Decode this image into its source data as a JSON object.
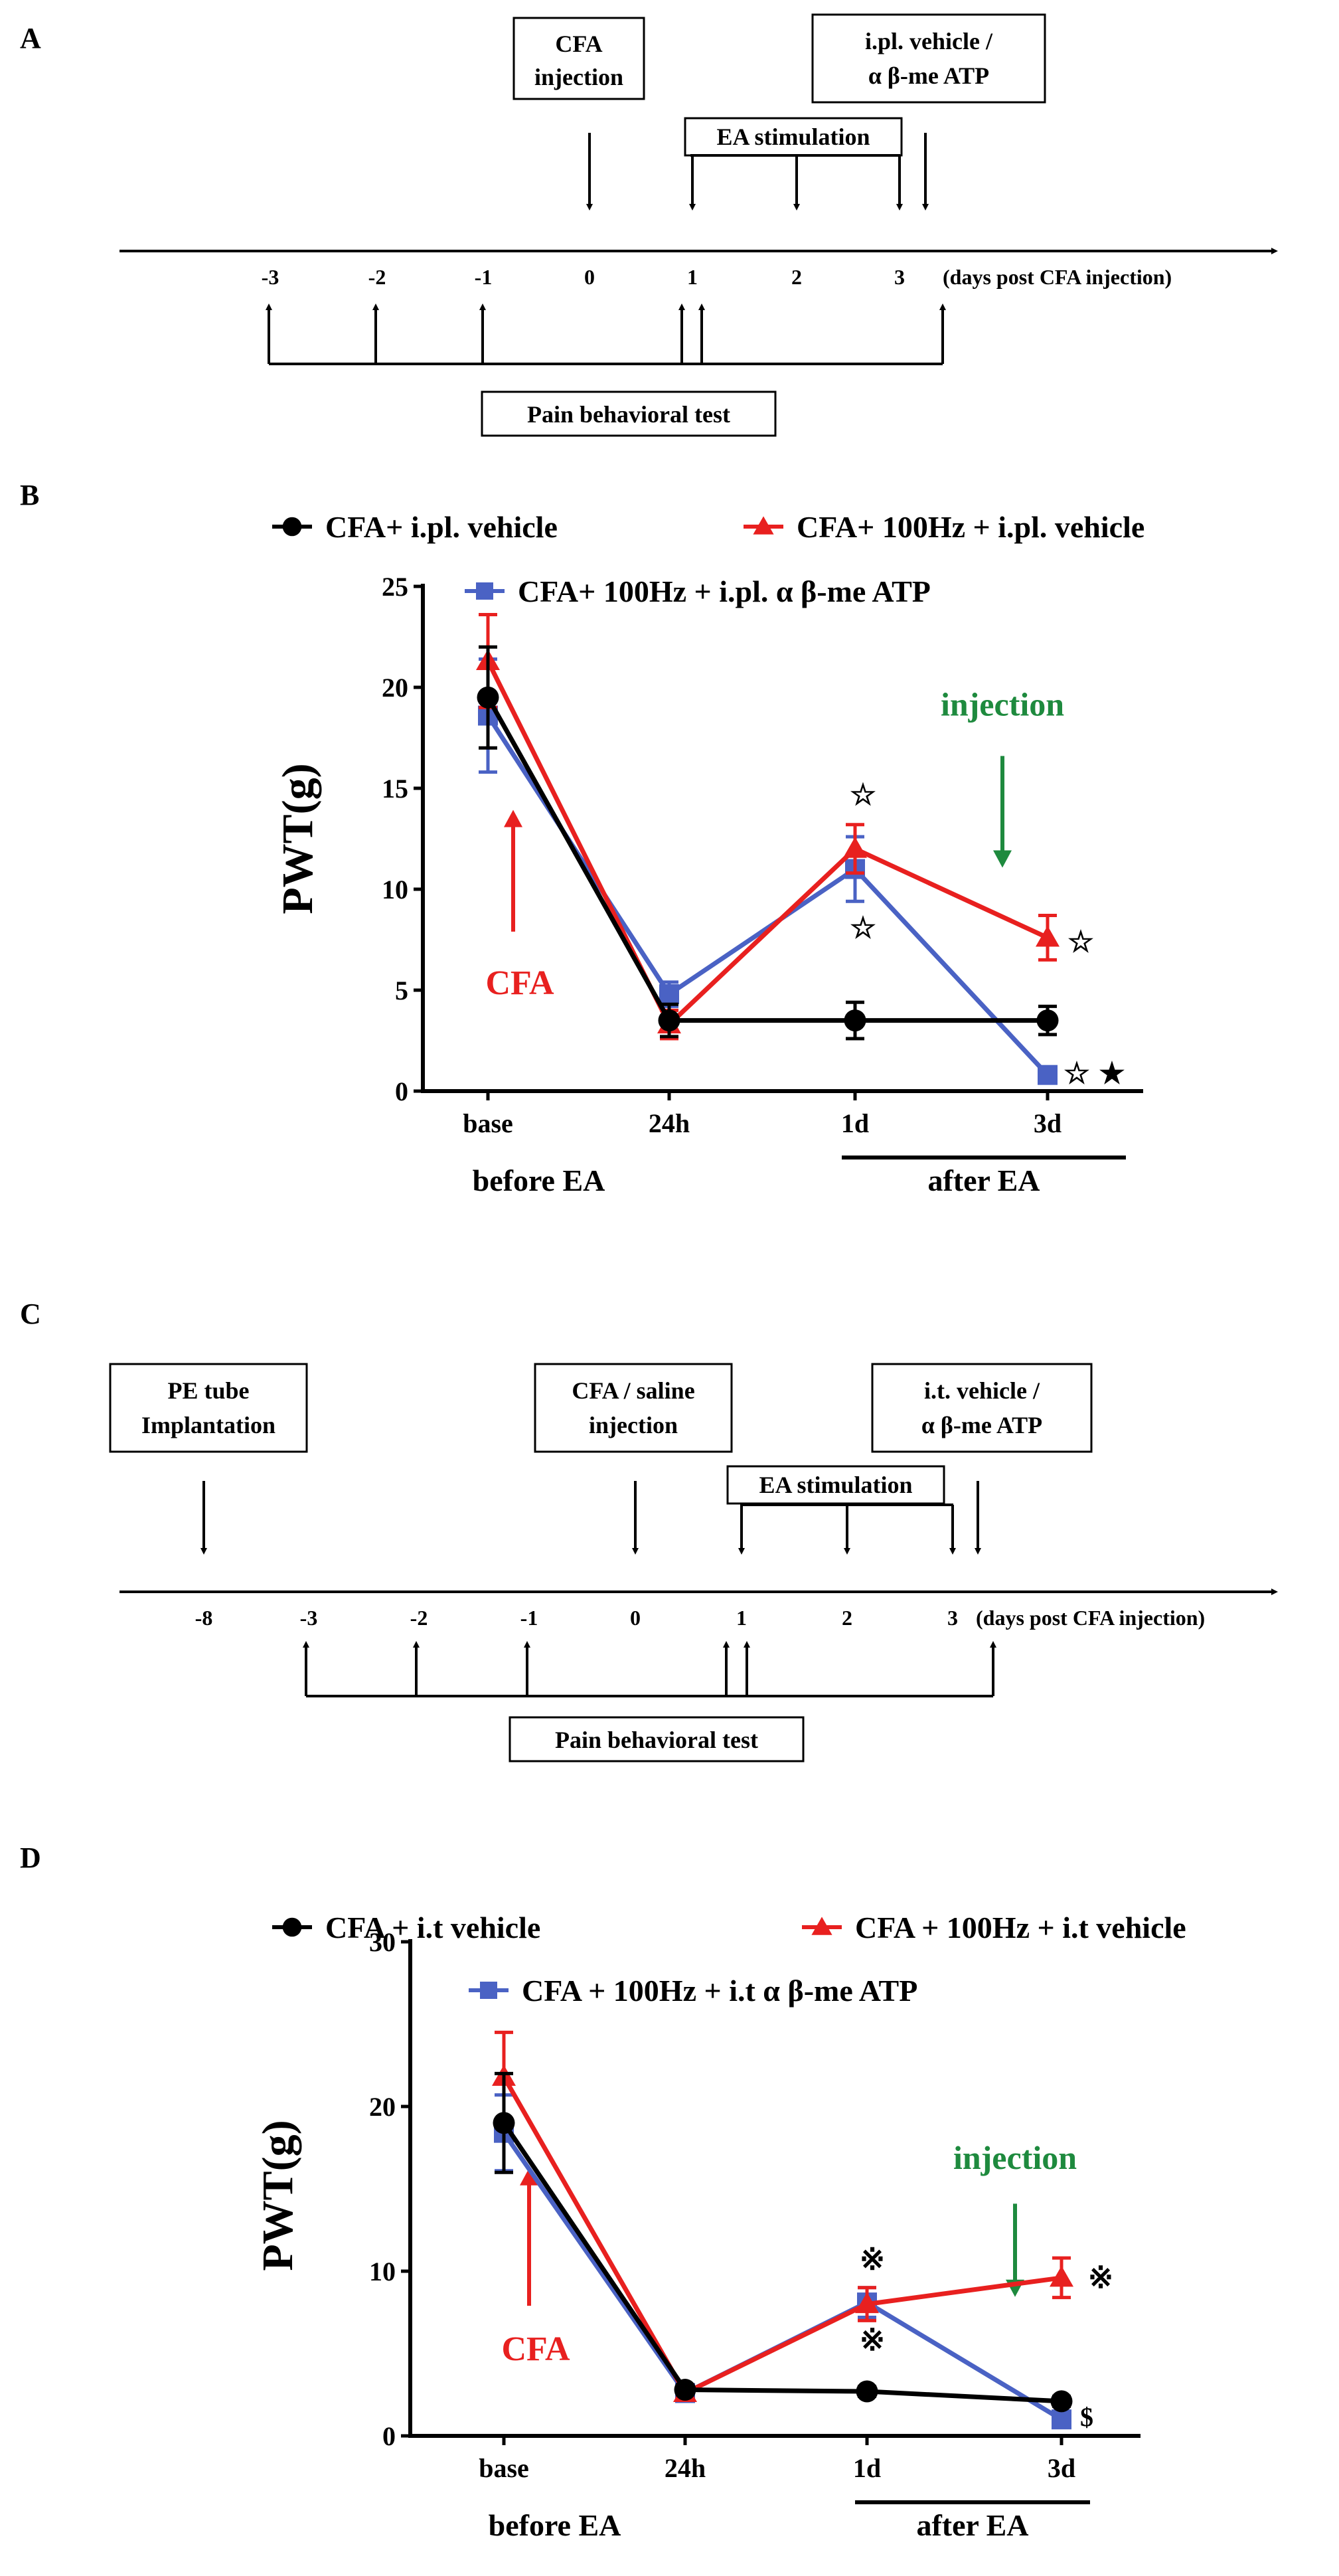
{
  "panels": {
    "A": "A",
    "B": "B",
    "C": "C",
    "D": "D"
  },
  "timeline_A": {
    "ticks": [
      "-3",
      "-2",
      "-1",
      "0",
      "1",
      "2",
      "3"
    ],
    "axis_label": "(days post CFA injection)",
    "box_cfa_line1": "CFA",
    "box_cfa_line2": "injection",
    "box_drug_line1": "i.pl. vehicle /",
    "box_drug_line2": "α β-me ATP",
    "box_ea": "EA stimulation",
    "box_pain": "Pain behavioral test"
  },
  "timeline_C": {
    "ticks": [
      "-8",
      "-3",
      "-2",
      "-1",
      "0",
      "1",
      "2",
      "3"
    ],
    "axis_label": "(days post CFA injection)",
    "box_pe_line1": "PE tube",
    "box_pe_line2": "Implantation",
    "box_cfa_line1": "CFA / saline",
    "box_cfa_line2": "injection",
    "box_drug_line1": "i.t. vehicle /",
    "box_drug_line2": "α β-me ATP",
    "box_ea": "EA stimulation",
    "box_pain": "Pain behavioral test"
  },
  "colors": {
    "black_series": "#000000",
    "red_series": "#e8201f",
    "blue_series": "#4a62c4",
    "injection_green": "#1e8a3e",
    "cfa_red": "#e8201f"
  },
  "chart_data": [
    {
      "panel": "B",
      "type": "line",
      "ylabel": "PWT(g)",
      "ylim": [
        0,
        25
      ],
      "yticks": [
        "0",
        "5",
        "10",
        "15",
        "20",
        "25"
      ],
      "categories": [
        "base",
        "24h",
        "1d",
        "3d"
      ],
      "group_labels": [
        "before EA",
        "after EA"
      ],
      "series": [
        {
          "name": "CFA+ i.pl. vehicle",
          "marker": "circle",
          "color": "#000000",
          "values": [
            19.5,
            3.5,
            3.5,
            3.5
          ],
          "errors": [
            2.5,
            0.8,
            0.9,
            0.7
          ]
        },
        {
          "name": "CFA+ 100Hz + i.pl. vehicle",
          "marker": "triangle",
          "color": "#e8201f",
          "values": [
            21.3,
            3.3,
            12.0,
            7.6
          ],
          "errors": [
            2.3,
            0.7,
            1.2,
            1.1
          ]
        },
        {
          "name": "CFA+ 100Hz + i.pl. α β-me ATP",
          "marker": "square",
          "color": "#4a62c4",
          "values": [
            18.6,
            4.8,
            11.0,
            0.8
          ],
          "errors": [
            2.8,
            0.6,
            1.6,
            0.3
          ]
        }
      ],
      "annotations": {
        "injection_label": "injection",
        "cfa_label": "CFA",
        "sig_1d_top": "☆",
        "sig_1d_bottom": "☆",
        "sig_3d_red": "☆",
        "sig_3d_blue_open": "☆",
        "sig_3d_blue_filled": "★"
      }
    },
    {
      "panel": "D",
      "type": "line",
      "ylabel": "PWT(g)",
      "ylim": [
        0,
        30
      ],
      "yticks": [
        "0",
        "10",
        "20",
        "30"
      ],
      "categories": [
        "base",
        "24h",
        "1d",
        "3d"
      ],
      "group_labels": [
        "before EA",
        "after EA"
      ],
      "series": [
        {
          "name": "CFA + i.t vehicle",
          "marker": "circle",
          "color": "#000000",
          "values": [
            19.0,
            2.8,
            2.7,
            2.1
          ],
          "errors": [
            3.0,
            0.3,
            0.3,
            0.3
          ]
        },
        {
          "name": "CFA + 100Hz + i.t vehicle",
          "marker": "triangle",
          "color": "#e8201f",
          "values": [
            21.8,
            2.6,
            8.0,
            9.6
          ],
          "errors": [
            2.7,
            0.3,
            1.0,
            1.2
          ]
        },
        {
          "name": "CFA + 100Hz + i.t α β-me ATP",
          "marker": "square",
          "color": "#4a62c4",
          "values": [
            18.4,
            2.6,
            8.1,
            1.0
          ],
          "errors": [
            2.3,
            0.3,
            0.9,
            0.3
          ]
        }
      ],
      "annotations": {
        "injection_label": "injection",
        "cfa_label": "CFA",
        "sig_1d_top": "※",
        "sig_1d_bottom": "※",
        "sig_3d_red": "※",
        "sig_3d_blue": "$"
      }
    }
  ]
}
